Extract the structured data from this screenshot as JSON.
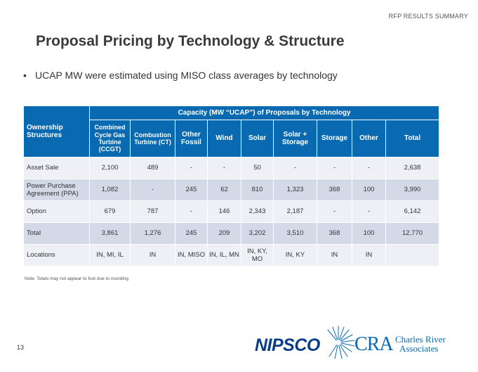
{
  "header": {
    "section_label": "RFP RESULTS SUMMARY"
  },
  "title": "Proposal Pricing by Technology & Structure",
  "bullet": "UCAP MW were estimated using MISO class averages by technology",
  "table": {
    "row_header": "Ownership Structures",
    "group_header": "Capacity (MW “UCAP”) of Proposals by Technology",
    "columns": [
      "Combined Cycle Gas Turbine (CCGT)",
      "Combustion Turbine (CT)",
      "Other Fossil",
      "Wind",
      "Solar",
      "Solar + Storage",
      "Storage",
      "Other",
      "Total"
    ],
    "rows": [
      {
        "label": "Asset Sale",
        "cells": [
          "2,100",
          "489",
          "-",
          "-",
          "50",
          "-",
          "-",
          "-",
          "2,638"
        ]
      },
      {
        "label": "Power Purchase Agreement (PPA)",
        "cells": [
          "1,082",
          "-",
          "245",
          "62",
          "810",
          "1,323",
          "368",
          "100",
          "3,990"
        ]
      },
      {
        "label": "Option",
        "cells": [
          "679",
          "787",
          "-",
          "146",
          "2,343",
          "2,187",
          "-",
          "-",
          "6,142"
        ]
      },
      {
        "label": "Total",
        "cells": [
          "3,861",
          "1,276",
          "245",
          "209",
          "3,202",
          "3,510",
          "368",
          "100",
          "12,770"
        ]
      },
      {
        "label": "Locations",
        "cells": [
          "IN, MI, IL",
          "IN",
          "IN, MISO",
          "IN, IL, MN",
          "IN, KY, MO",
          "IN, KY",
          "IN",
          "IN",
          ""
        ]
      }
    ]
  },
  "note": "Note: Totals may not appear to foot due to rounding",
  "page_number": "13",
  "logos": {
    "nipsco": "NIPSCO",
    "cra_mark": "CRA",
    "cra_name_line1": "Charles River",
    "cra_name_line2": "Associates"
  },
  "colors": {
    "header_blue": "#0a6ab1",
    "row_light": "#eef0f6",
    "row_dark": "#d4d9e7",
    "nipsco_navy": "#0a3f87"
  }
}
